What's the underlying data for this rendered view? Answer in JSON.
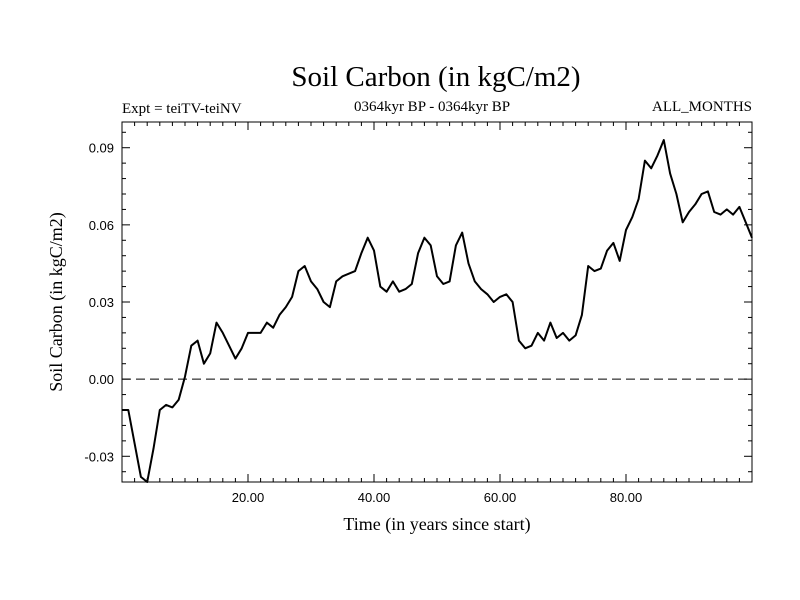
{
  "chart_data": {
    "type": "line",
    "title": "Soil Carbon (in kgC/m2)",
    "subtitle_left": "Expt = teiTV-teiNV",
    "subtitle_center": "0364kyr BP - 0364kyr BP",
    "subtitle_right": "ALL_MONTHS",
    "xlabel": "Time (in years since start)",
    "ylabel": "Soil Carbon (in kgC/m2)",
    "xlim": [
      0,
      100
    ],
    "ylim": [
      -0.04,
      0.1
    ],
    "xticks": [
      20,
      40,
      60,
      80
    ],
    "xtick_labels": [
      "20.00",
      "40.00",
      "60.00",
      "80.00"
    ],
    "yticks": [
      -0.03,
      0,
      0.03,
      0.06,
      0.09
    ],
    "ytick_labels": [
      "-0.03",
      "0.00",
      "0.03",
      "0.06",
      "0.09"
    ],
    "zero_line": "dashed",
    "grid": false,
    "series": [
      {
        "x": [
          0,
          1,
          2,
          3,
          4,
          5,
          6,
          7,
          8,
          9,
          10,
          11,
          12,
          13,
          14,
          15,
          16,
          17,
          18,
          19,
          20,
          21,
          22,
          23,
          24,
          25,
          26,
          27,
          28,
          29,
          30,
          31,
          32,
          33,
          34,
          35,
          36,
          37,
          38,
          39,
          40,
          41,
          42,
          43,
          44,
          45,
          46,
          47,
          48,
          49,
          50,
          51,
          52,
          53,
          54,
          55,
          56,
          57,
          58,
          59,
          60,
          61,
          62,
          63,
          64,
          65,
          66,
          67,
          68,
          69,
          70,
          71,
          72,
          73,
          74,
          75,
          76,
          77,
          78,
          79,
          80,
          81,
          82,
          83,
          84,
          85,
          86,
          87,
          88,
          89,
          90,
          91,
          92,
          93,
          94,
          95,
          96,
          97,
          98,
          99,
          100
        ],
        "values": [
          -0.012,
          -0.012,
          -0.025,
          -0.038,
          -0.04,
          -0.027,
          -0.012,
          -0.01,
          -0.011,
          -0.008,
          0.001,
          0.013,
          0.015,
          0.006,
          0.01,
          0.022,
          0.018,
          0.013,
          0.008,
          0.012,
          0.018,
          0.018,
          0.018,
          0.022,
          0.02,
          0.025,
          0.028,
          0.032,
          0.042,
          0.044,
          0.038,
          0.035,
          0.03,
          0.028,
          0.038,
          0.04,
          0.041,
          0.042,
          0.049,
          0.055,
          0.05,
          0.036,
          0.034,
          0.038,
          0.034,
          0.035,
          0.037,
          0.049,
          0.055,
          0.052,
          0.04,
          0.037,
          0.038,
          0.052,
          0.057,
          0.045,
          0.038,
          0.035,
          0.033,
          0.03,
          0.032,
          0.033,
          0.03,
          0.015,
          0.012,
          0.013,
          0.018,
          0.015,
          0.022,
          0.016,
          0.018,
          0.015,
          0.017,
          0.025,
          0.044,
          0.042,
          0.043,
          0.05,
          0.053,
          0.046,
          0.058,
          0.063,
          0.07,
          0.085,
          0.082,
          0.087,
          0.093,
          0.08,
          0.072,
          0.061,
          0.065,
          0.068,
          0.072,
          0.073,
          0.065,
          0.064,
          0.066,
          0.064,
          0.067,
          0.061,
          0.055
        ]
      }
    ]
  }
}
